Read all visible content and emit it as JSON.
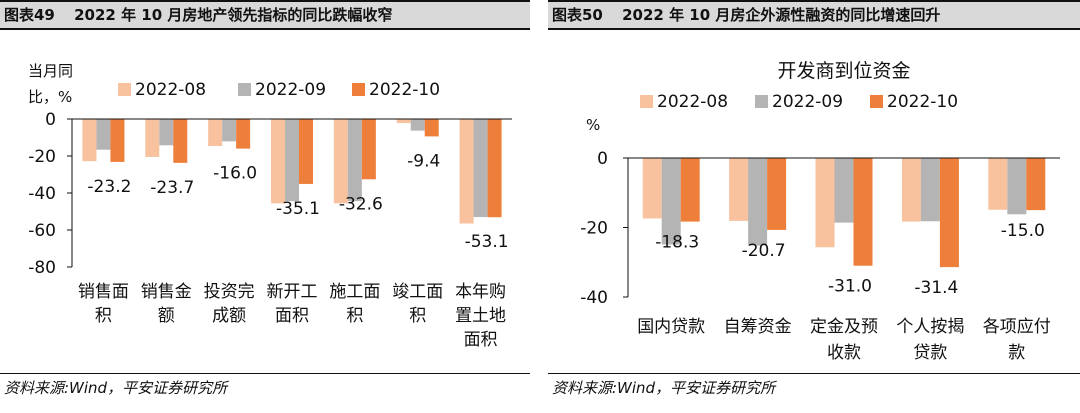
{
  "colors": {
    "s08": "#f8c29e",
    "s09": "#b4b4b4",
    "s10": "#ee7f3a"
  },
  "panels": [
    {
      "header": {
        "number": "图表49",
        "title": "2022 年 10 月房地产领先指标的同比跌幅收窄"
      },
      "source": "资料来源:Wind，平安证券研究所",
      "chart_data": {
        "type": "bar",
        "title": "",
        "ylabel_lines": [
          "当月同",
          "比，%"
        ],
        "xlabel": "",
        "ylim": [
          -80,
          0
        ],
        "yticks": [
          0,
          -20,
          -40,
          -60,
          -80
        ],
        "grid": false,
        "legend": "top",
        "categories": [
          [
            "销售面",
            "积"
          ],
          [
            "销售金",
            "额"
          ],
          [
            "投资完",
            "成额"
          ],
          [
            "新开工",
            "面积"
          ],
          [
            "施工面",
            "积"
          ],
          [
            "竣工面",
            "积"
          ],
          [
            "本年购",
            "置土地",
            "面积"
          ]
        ],
        "series": [
          {
            "name": "2022-08",
            "values": [
              -22.8,
              -20.5,
              -14.6,
              -45.6,
              -45.6,
              -2.2,
              -56.5
            ]
          },
          {
            "name": "2022-09",
            "values": [
              -16.6,
              -14.2,
              -12.1,
              -44.4,
              -44.4,
              -6.3,
              -53.0
            ]
          },
          {
            "name": "2022-10",
            "values": [
              -23.2,
              -23.7,
              -16.0,
              -35.1,
              -32.6,
              -9.4,
              -53.1
            ]
          }
        ],
        "data_labels": [
          "-23.2",
          "-23.7",
          "-16.0",
          "-35.1",
          "-32.6",
          "-9.4",
          "-53.1"
        ]
      }
    },
    {
      "header": {
        "number": "图表50",
        "title": "2022 年 10 月房企外源性融资的同比增速回升"
      },
      "source": "资料来源:Wind，平安证券研究所",
      "chart_data": {
        "type": "bar",
        "title": "开发商到位资金",
        "ylabel_lines": [
          "%"
        ],
        "xlabel": "",
        "ylim": [
          -40,
          0
        ],
        "yticks": [
          0,
          -20,
          -40
        ],
        "grid": false,
        "legend": "top",
        "categories": [
          [
            "国内贷款"
          ],
          [
            "自筹资金"
          ],
          [
            "定金及预",
            "收款"
          ],
          [
            "个人按揭",
            "贷款"
          ],
          [
            "各项应付",
            "款"
          ]
        ],
        "series": [
          {
            "name": "2022-08",
            "values": [
              -17.4,
              -18.1,
              -25.7,
              -18.3,
              -14.9
            ]
          },
          {
            "name": "2022-09",
            "values": [
              -24.9,
              -25.2,
              -18.6,
              -18.2,
              -16.2
            ]
          },
          {
            "name": "2022-10",
            "values": [
              -18.3,
              -20.7,
              -31.0,
              -31.4,
              -15.0
            ]
          }
        ],
        "data_labels": [
          "-18.3",
          "-20.7",
          "-31.0",
          "-31.4",
          "-15.0"
        ]
      }
    }
  ]
}
